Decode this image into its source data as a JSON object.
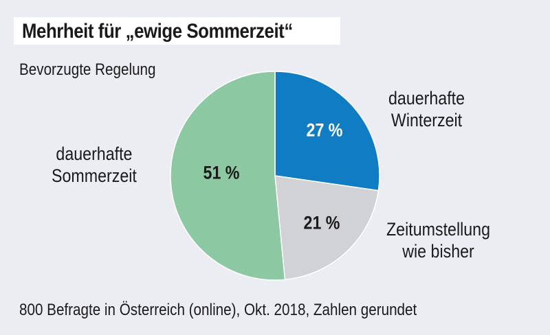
{
  "chart_data": {
    "type": "pie",
    "title": "Mehrheit für „ewige Sommerzeit“",
    "subtitle": "Bevorzugte Regelung",
    "footer": "800 Befragte in Österreich (online), Okt. 2018, Zahlen gerundet",
    "slices": [
      {
        "label_line1": "dauerhafte",
        "label_line2": "Winterzeit",
        "value": 27,
        "value_label": "27 %",
        "color": "#0f7cc4",
        "text_color": "#ffffff"
      },
      {
        "label_line1": "Zeitumstellung",
        "label_line2": "wie bisher",
        "value": 21,
        "value_label": "21 %",
        "color": "#d1d2d6",
        "text_color": "#1a1a1a"
      },
      {
        "label_line1": "dauerhafte",
        "label_line2": "Sommerzeit",
        "value": 51,
        "value_label": "51 %",
        "color": "#8cc8a2",
        "text_color": "#1a1a1a"
      }
    ]
  }
}
